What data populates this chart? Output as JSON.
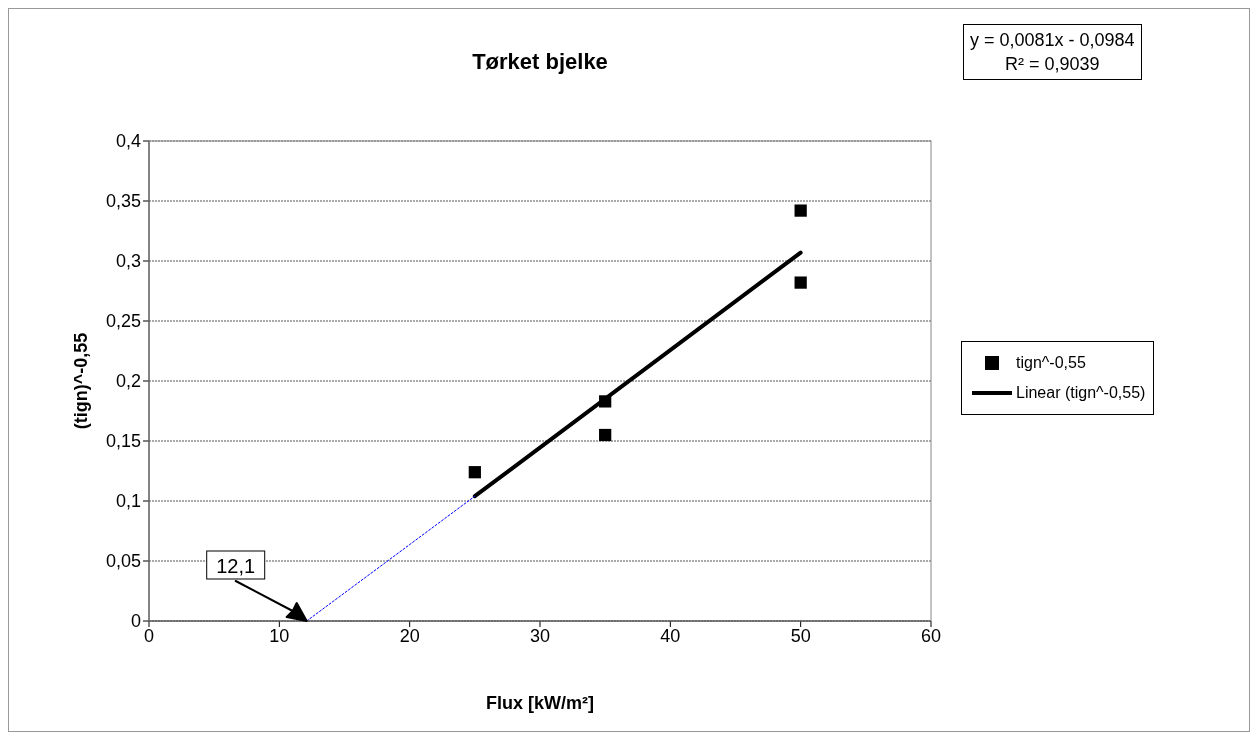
{
  "chart_data": {
    "type": "scatter",
    "title": "Tørket bjelke",
    "xlabel": "Flux [kW/m²]",
    "ylabel": "(tign)^-0,55",
    "series": [
      {
        "name": "tign^-0,55",
        "color": "#000000",
        "marker": "square",
        "x": [
          25,
          35,
          35,
          50,
          50
        ],
        "values": [
          0.124,
          0.183,
          0.155,
          0.342,
          0.282
        ]
      },
      {
        "name": "Linear (tign^-0,55)",
        "type": "line",
        "color": "#000000",
        "line_style": "solid",
        "marker": "none",
        "x": [
          25,
          50
        ],
        "values": [
          0.104,
          0.307
        ]
      },
      {
        "type": "line",
        "color": "#0000ff",
        "line_style": "dotted",
        "marker": "none",
        "x": [
          12.1,
          25
        ],
        "values": [
          0,
          0.104
        ]
      }
    ],
    "annotations": [
      "y = 0,0081x - 0,0984",
      "R² = 0,9039",
      "12,1"
    ],
    "xlim": [
      0,
      60
    ],
    "xticks": [
      0,
      10,
      20,
      30,
      40,
      50,
      60
    ],
    "ylim": [
      0,
      0.4
    ],
    "yticks": [
      0,
      {
        "value": 0.05,
        "label": "0,05"
      },
      {
        "value": 0.1,
        "label": "0,1"
      },
      {
        "value": 0.15,
        "label": "0,15"
      },
      {
        "value": 0.2,
        "label": "0,2"
      },
      {
        "value": 0.25,
        "label": "0,25"
      },
      {
        "value": 0.3,
        "label": "0,3"
      },
      {
        "value": 0.35,
        "label": "0,35"
      },
      {
        "value": 0.4,
        "label": "0,4"
      }
    ],
    "grid": "y",
    "legend": "right"
  }
}
